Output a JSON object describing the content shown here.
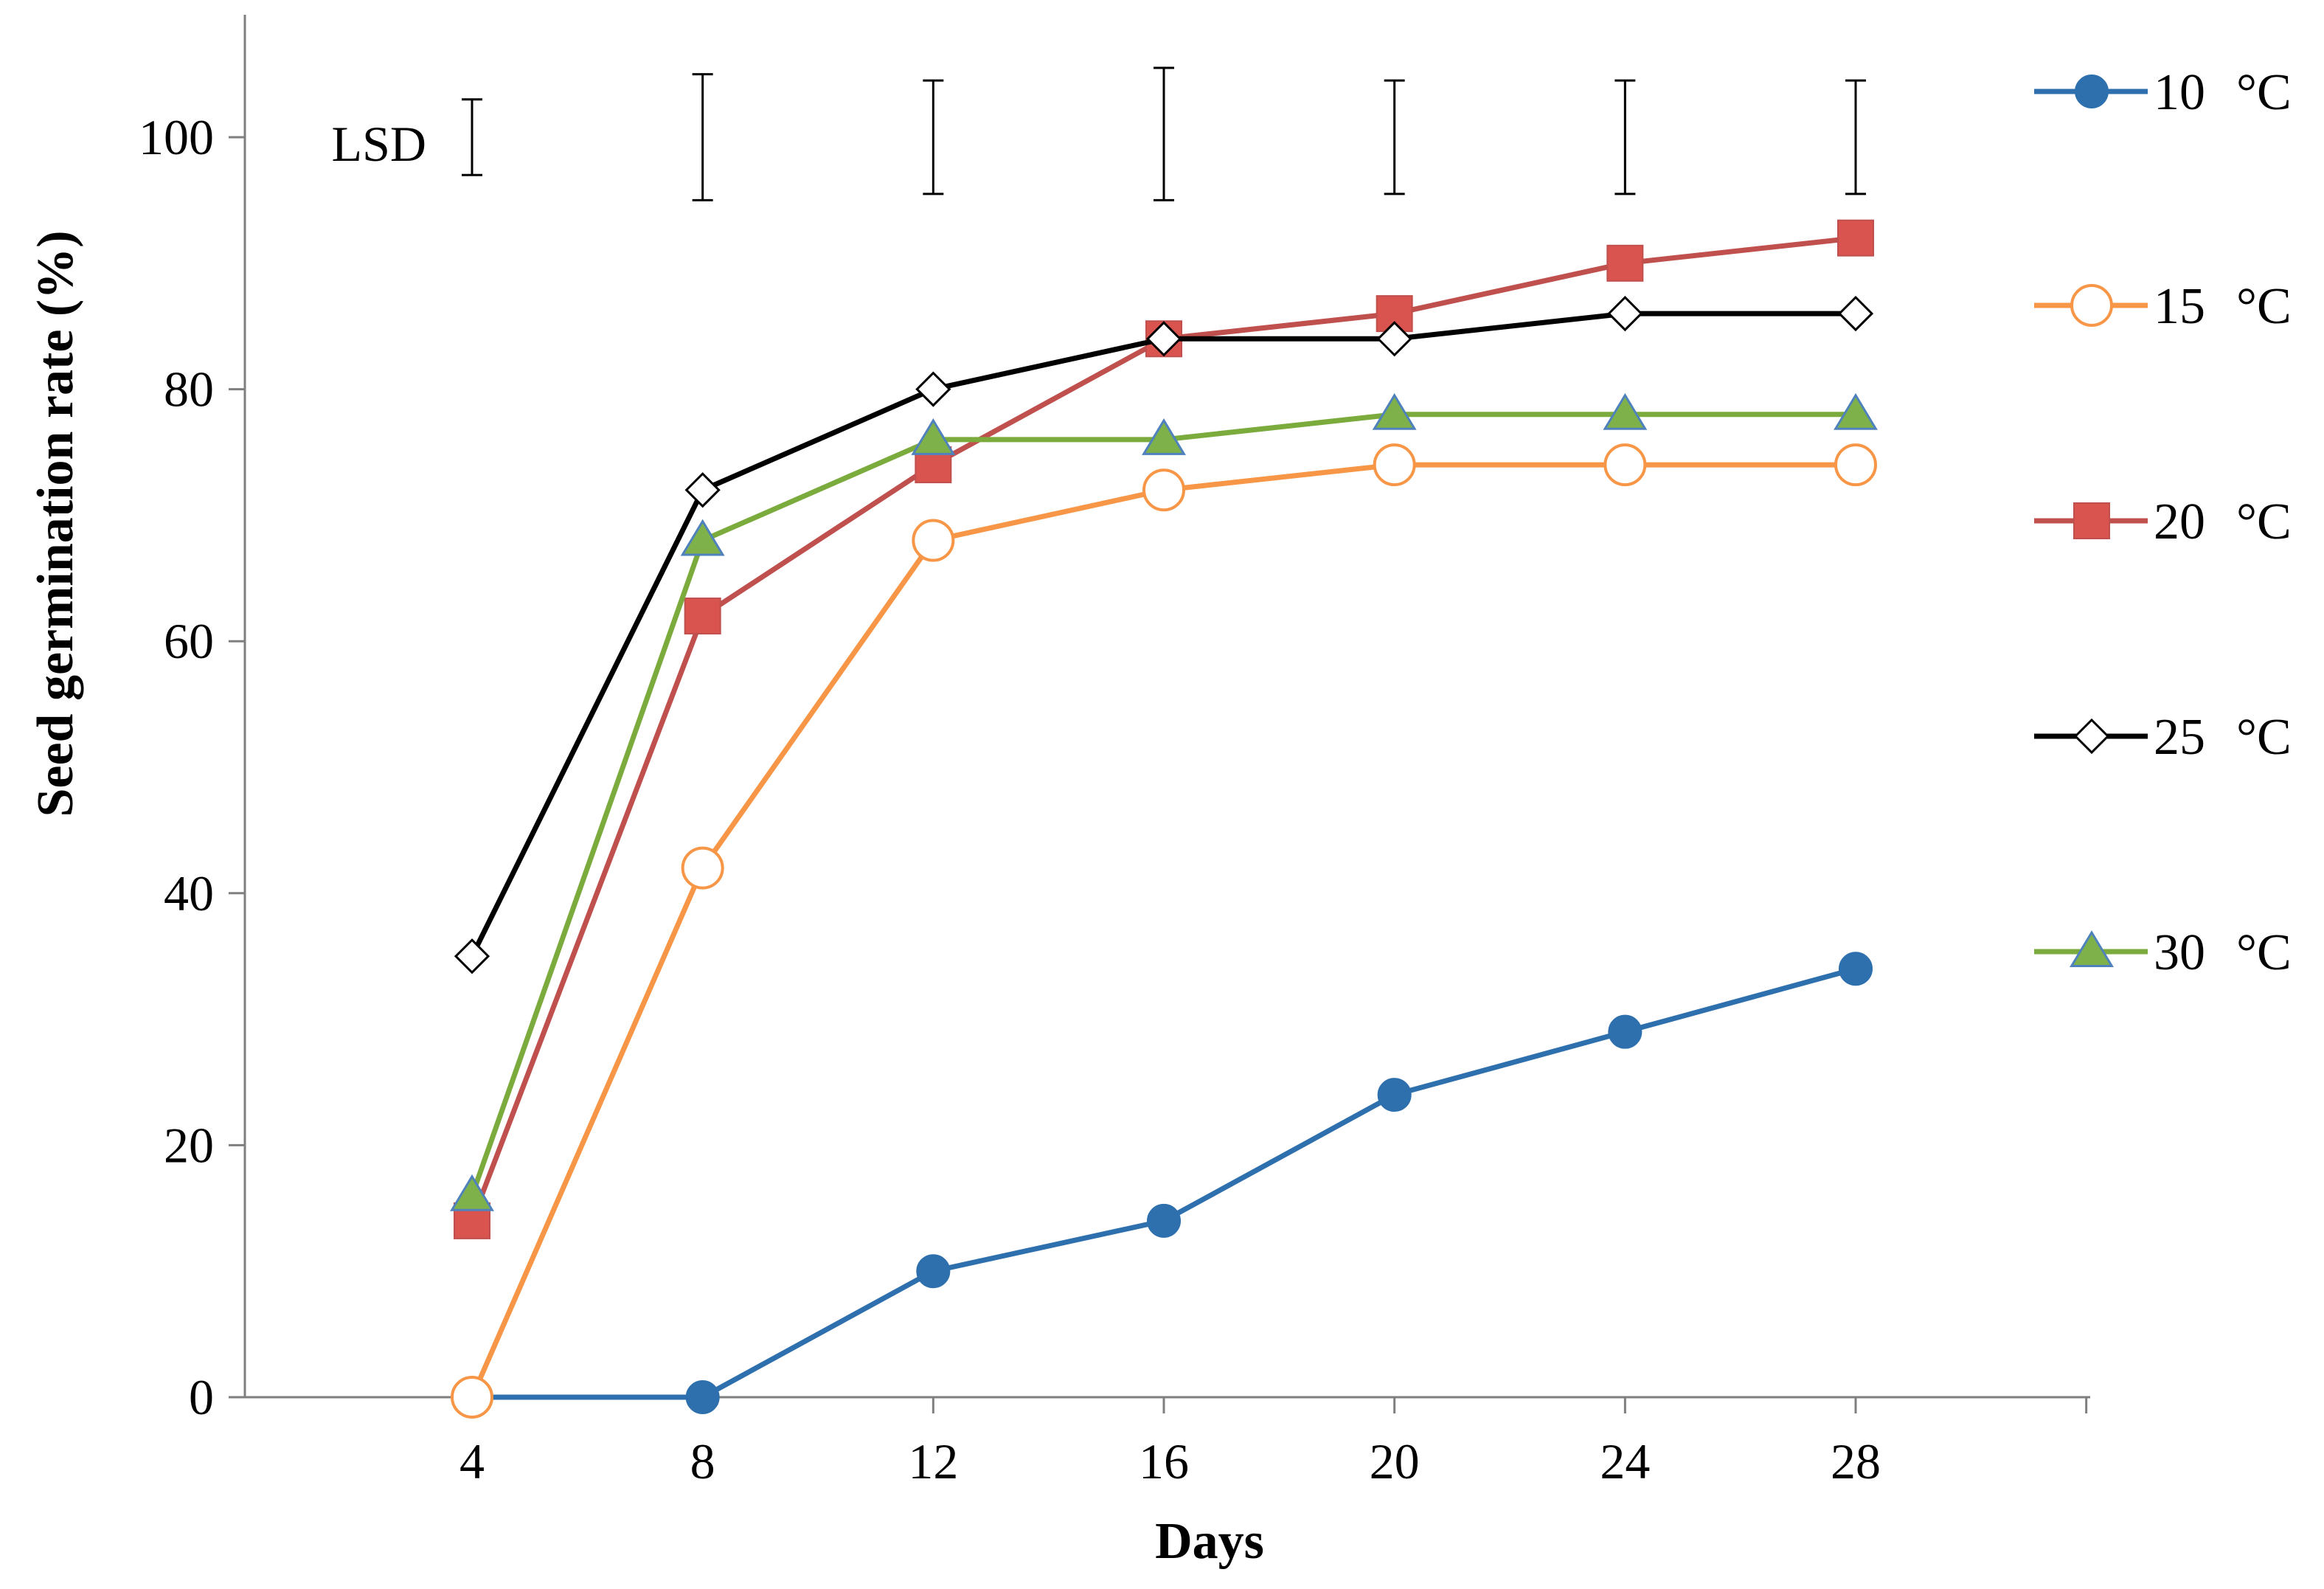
{
  "chart_data": {
    "type": "line",
    "title": "",
    "xlabel": "Days",
    "ylabel": "Seed germination rate (%)",
    "x": [
      4,
      8,
      12,
      16,
      20,
      24,
      28
    ],
    "xlim": [
      0,
      32
    ],
    "ylim": [
      0,
      110
    ],
    "yticks": [
      0,
      20,
      40,
      60,
      80,
      100
    ],
    "grid": false,
    "legend_position": "right",
    "series": [
      {
        "name": "10 °C",
        "label_num": "10",
        "label_unit": "°C",
        "color": "#2e6fad",
        "marker": "filled-circle",
        "marker_color": "#2e6fad",
        "values": [
          0,
          0,
          10,
          14,
          24,
          29,
          34
        ]
      },
      {
        "name": "15 °C",
        "label_num": "15",
        "label_unit": "°C",
        "color": "#f79646",
        "marker": "open-circle",
        "marker_color": "#f79646",
        "values": [
          0,
          42,
          68,
          72,
          74,
          74,
          74
        ]
      },
      {
        "name": "20 °C",
        "label_num": "20",
        "label_unit": "°C",
        "color": "#c0504d",
        "marker": "filled-square",
        "marker_color": "#d9534f",
        "values": [
          14,
          62,
          74,
          84,
          86,
          90,
          92
        ]
      },
      {
        "name": "25 °C",
        "label_num": "25",
        "label_unit": "°C",
        "color": "#000000",
        "marker": "open-diamond",
        "marker_color": "#000000",
        "values": [
          35,
          72,
          80,
          84,
          84,
          86,
          86
        ]
      },
      {
        "name": "30 °C",
        "label_num": "30",
        "label_unit": "°C",
        "color": "#7aab3c",
        "marker": "filled-triangle",
        "marker_color": "#7fb14a",
        "values": [
          16,
          68,
          76,
          76,
          78,
          78,
          78
        ]
      }
    ],
    "lsd": {
      "label": "LSD",
      "bars": [
        {
          "x": 4,
          "low": 97,
          "high": 103
        },
        {
          "x": 8,
          "low": 95,
          "high": 105
        },
        {
          "x": 12,
          "low": 95.5,
          "high": 104.5
        },
        {
          "x": 16,
          "low": 95,
          "high": 105.5
        },
        {
          "x": 20,
          "low": 95.5,
          "high": 104.5
        },
        {
          "x": 24,
          "low": 95.5,
          "high": 104.5
        },
        {
          "x": 28,
          "low": 95.5,
          "high": 104.5
        }
      ]
    }
  }
}
